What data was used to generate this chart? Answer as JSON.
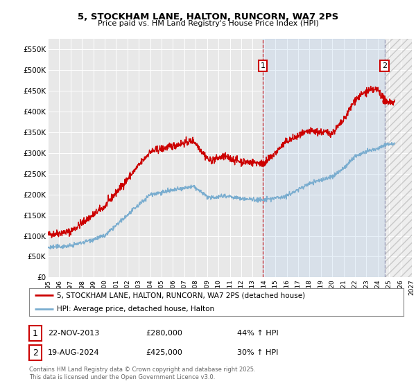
{
  "title": "5, STOCKHAM LANE, HALTON, RUNCORN, WA7 2PS",
  "subtitle": "Price paid vs. HM Land Registry's House Price Index (HPI)",
  "background_color": "#ffffff",
  "plot_bg_color": "#e8e8e8",
  "grid_color": "#ffffff",
  "red_color": "#cc0000",
  "blue_color": "#7aadcf",
  "shade_color": "#ddeeff",
  "annotation1": {
    "num": "1",
    "date": "22-NOV-2013",
    "price": "£280,000",
    "hpi": "44% ↑ HPI",
    "x_year": 2013.9
  },
  "annotation2": {
    "num": "2",
    "date": "19-AUG-2024",
    "price": "£425,000",
    "hpi": "30% ↑ HPI",
    "x_year": 2024.6
  },
  "legend_line1": "5, STOCKHAM LANE, HALTON, RUNCORN, WA7 2PS (detached house)",
  "legend_line2": "HPI: Average price, detached house, Halton",
  "footnote": "Contains HM Land Registry data © Crown copyright and database right 2025.\nThis data is licensed under the Open Government Licence v3.0.",
  "xmin": 1995,
  "xmax": 2027,
  "ymin": 0,
  "ymax": 575000,
  "yticks": [
    0,
    50000,
    100000,
    150000,
    200000,
    250000,
    300000,
    350000,
    400000,
    450000,
    500000,
    550000
  ],
  "xticks": [
    1995,
    1996,
    1997,
    1998,
    1999,
    2000,
    2001,
    2002,
    2003,
    2004,
    2005,
    2006,
    2007,
    2008,
    2009,
    2010,
    2011,
    2012,
    2013,
    2014,
    2015,
    2016,
    2017,
    2018,
    2019,
    2020,
    2021,
    2022,
    2023,
    2024,
    2025,
    2026,
    2027
  ]
}
